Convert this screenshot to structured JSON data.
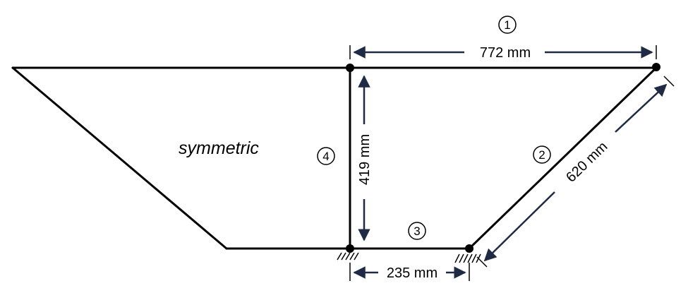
{
  "diagram": {
    "annotation": "symmetric",
    "dimensions": {
      "top": "772 mm",
      "diagonal": "620 mm",
      "vertical": "419 mm",
      "bottom": "235 mm"
    },
    "member_labels": [
      "1",
      "2",
      "3",
      "4"
    ],
    "colors": {
      "structure": "#000000",
      "dimension": "#1f2a44",
      "node": "#000000"
    },
    "supports": [
      "pinned-support-left",
      "pinned-support-right"
    ]
  }
}
